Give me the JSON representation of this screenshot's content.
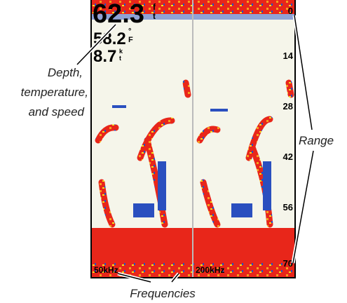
{
  "screen": {
    "depth": {
      "value": "62.3",
      "unit_top": "f",
      "unit_bottom": "t"
    },
    "temperature": {
      "value": "58.2",
      "unit_top": "°",
      "unit_bottom": "F"
    },
    "speed": {
      "value": "8.7",
      "unit_top": "k",
      "unit_bottom": "t"
    },
    "range_labels": [
      0,
      14,
      28,
      42,
      56,
      70
    ],
    "frequencies": [
      "50kHz",
      "200kHz"
    ]
  },
  "annotations": {
    "depth_temp_speed": [
      "Depth,",
      "temperature,",
      "and speed"
    ],
    "range": "Range",
    "frequencies": "Frequencies"
  }
}
